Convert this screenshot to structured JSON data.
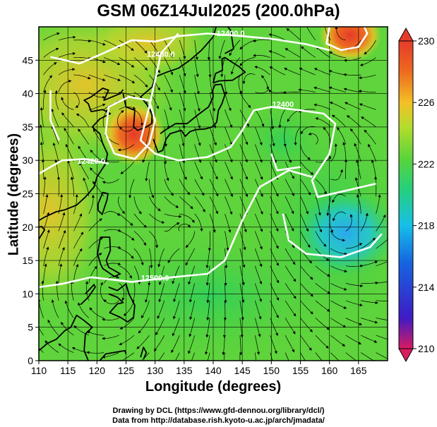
{
  "title": "GSM 06Z14Jul2025 (200.0hPa)",
  "axes": {
    "xlabel": "Longitude (degrees)",
    "ylabel": "Latitude  (degrees)",
    "x_ticks": [
      "110",
      "115",
      "120",
      "125",
      "130",
      "135",
      "140",
      "145",
      "150",
      "155",
      "160",
      "165"
    ],
    "y_ticks": [
      "0",
      "5",
      "10",
      "15",
      "20",
      "25",
      "30",
      "35",
      "40",
      "45"
    ]
  },
  "colorbar": {
    "labels": [
      "230",
      "226",
      "222",
      "218",
      "214",
      "210"
    ],
    "colors": [
      "#d81b60",
      "#3f1bc4",
      "#1565e0",
      "#17bfe8",
      "#25d07a",
      "#5bd43a",
      "#b4dd2d",
      "#f3c026",
      "#ee6a1f",
      "#e53b2b"
    ]
  },
  "contours": [
    {
      "label": "12400.0"
    },
    {
      "label": "12400"
    },
    {
      "label": "12420.0"
    },
    {
      "label": "12480.0"
    },
    {
      "label": "12500.0"
    }
  ],
  "credits": {
    "line1": "Drawing by DCL (https://www.gfd-dennou.org/library/dcl/)",
    "line2": "Data from http://database.rish.kyoto-u.ac.jp/arch/jmadata/"
  },
  "chart_data": {
    "type": "heatmap",
    "title": "GSM 06Z14Jul2025 (200.0hPa)",
    "xlabel": "Longitude (degrees)",
    "ylabel": "Latitude  (degrees)",
    "xlim": [
      110,
      170
    ],
    "ylim": [
      0,
      50
    ],
    "colorbar_range": [
      210,
      230
    ],
    "colorbar_ticks": [
      230,
      226,
      222,
      218,
      214,
      210
    ],
    "features": [
      {
        "name": "warm-core",
        "lon": 126,
        "lat": 36,
        "value": 230
      },
      {
        "name": "warm-core",
        "lon": 163,
        "lat": 49,
        "value": 230
      },
      {
        "name": "cold-core",
        "lon": 162,
        "lat": 20,
        "value": 217
      }
    ]
  }
}
